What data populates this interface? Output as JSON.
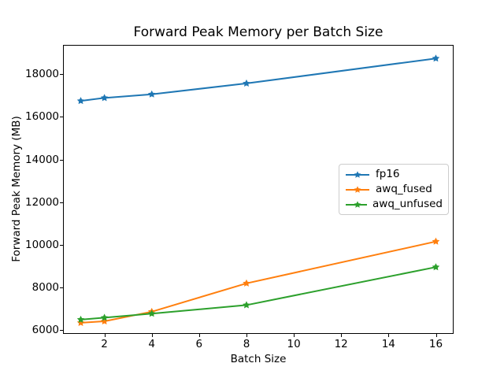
{
  "chart_data": {
    "type": "line",
    "title": "Forward Peak Memory per Batch Size",
    "xlabel": "Batch Size",
    "ylabel": "Forward Peak Memory (MB)",
    "x": [
      1,
      2,
      4,
      8,
      16
    ],
    "series": [
      {
        "name": "fp16",
        "color": "#1f77b4",
        "marker": "star",
        "values": [
          16750,
          16890,
          17060,
          17570,
          18740
        ]
      },
      {
        "name": "awq_fused",
        "color": "#ff7f0e",
        "marker": "star",
        "values": [
          6350,
          6420,
          6870,
          8200,
          10160
        ]
      },
      {
        "name": "awq_unfused",
        "color": "#2ca02c",
        "marker": "star",
        "values": [
          6500,
          6590,
          6780,
          7180,
          8960
        ]
      }
    ],
    "x_ticks": [
      2,
      4,
      6,
      8,
      10,
      12,
      14,
      16
    ],
    "y_ticks": [
      6000,
      8000,
      10000,
      12000,
      14000,
      16000,
      18000
    ],
    "xlim": [
      0.25,
      16.75
    ],
    "ylim": [
      5830,
      19375
    ],
    "grid": false,
    "legend": {
      "position": "center right",
      "entries": [
        "fp16",
        "awq_fused",
        "awq_unfused"
      ]
    },
    "axis_color": "#000000",
    "background": "#ffffff"
  }
}
